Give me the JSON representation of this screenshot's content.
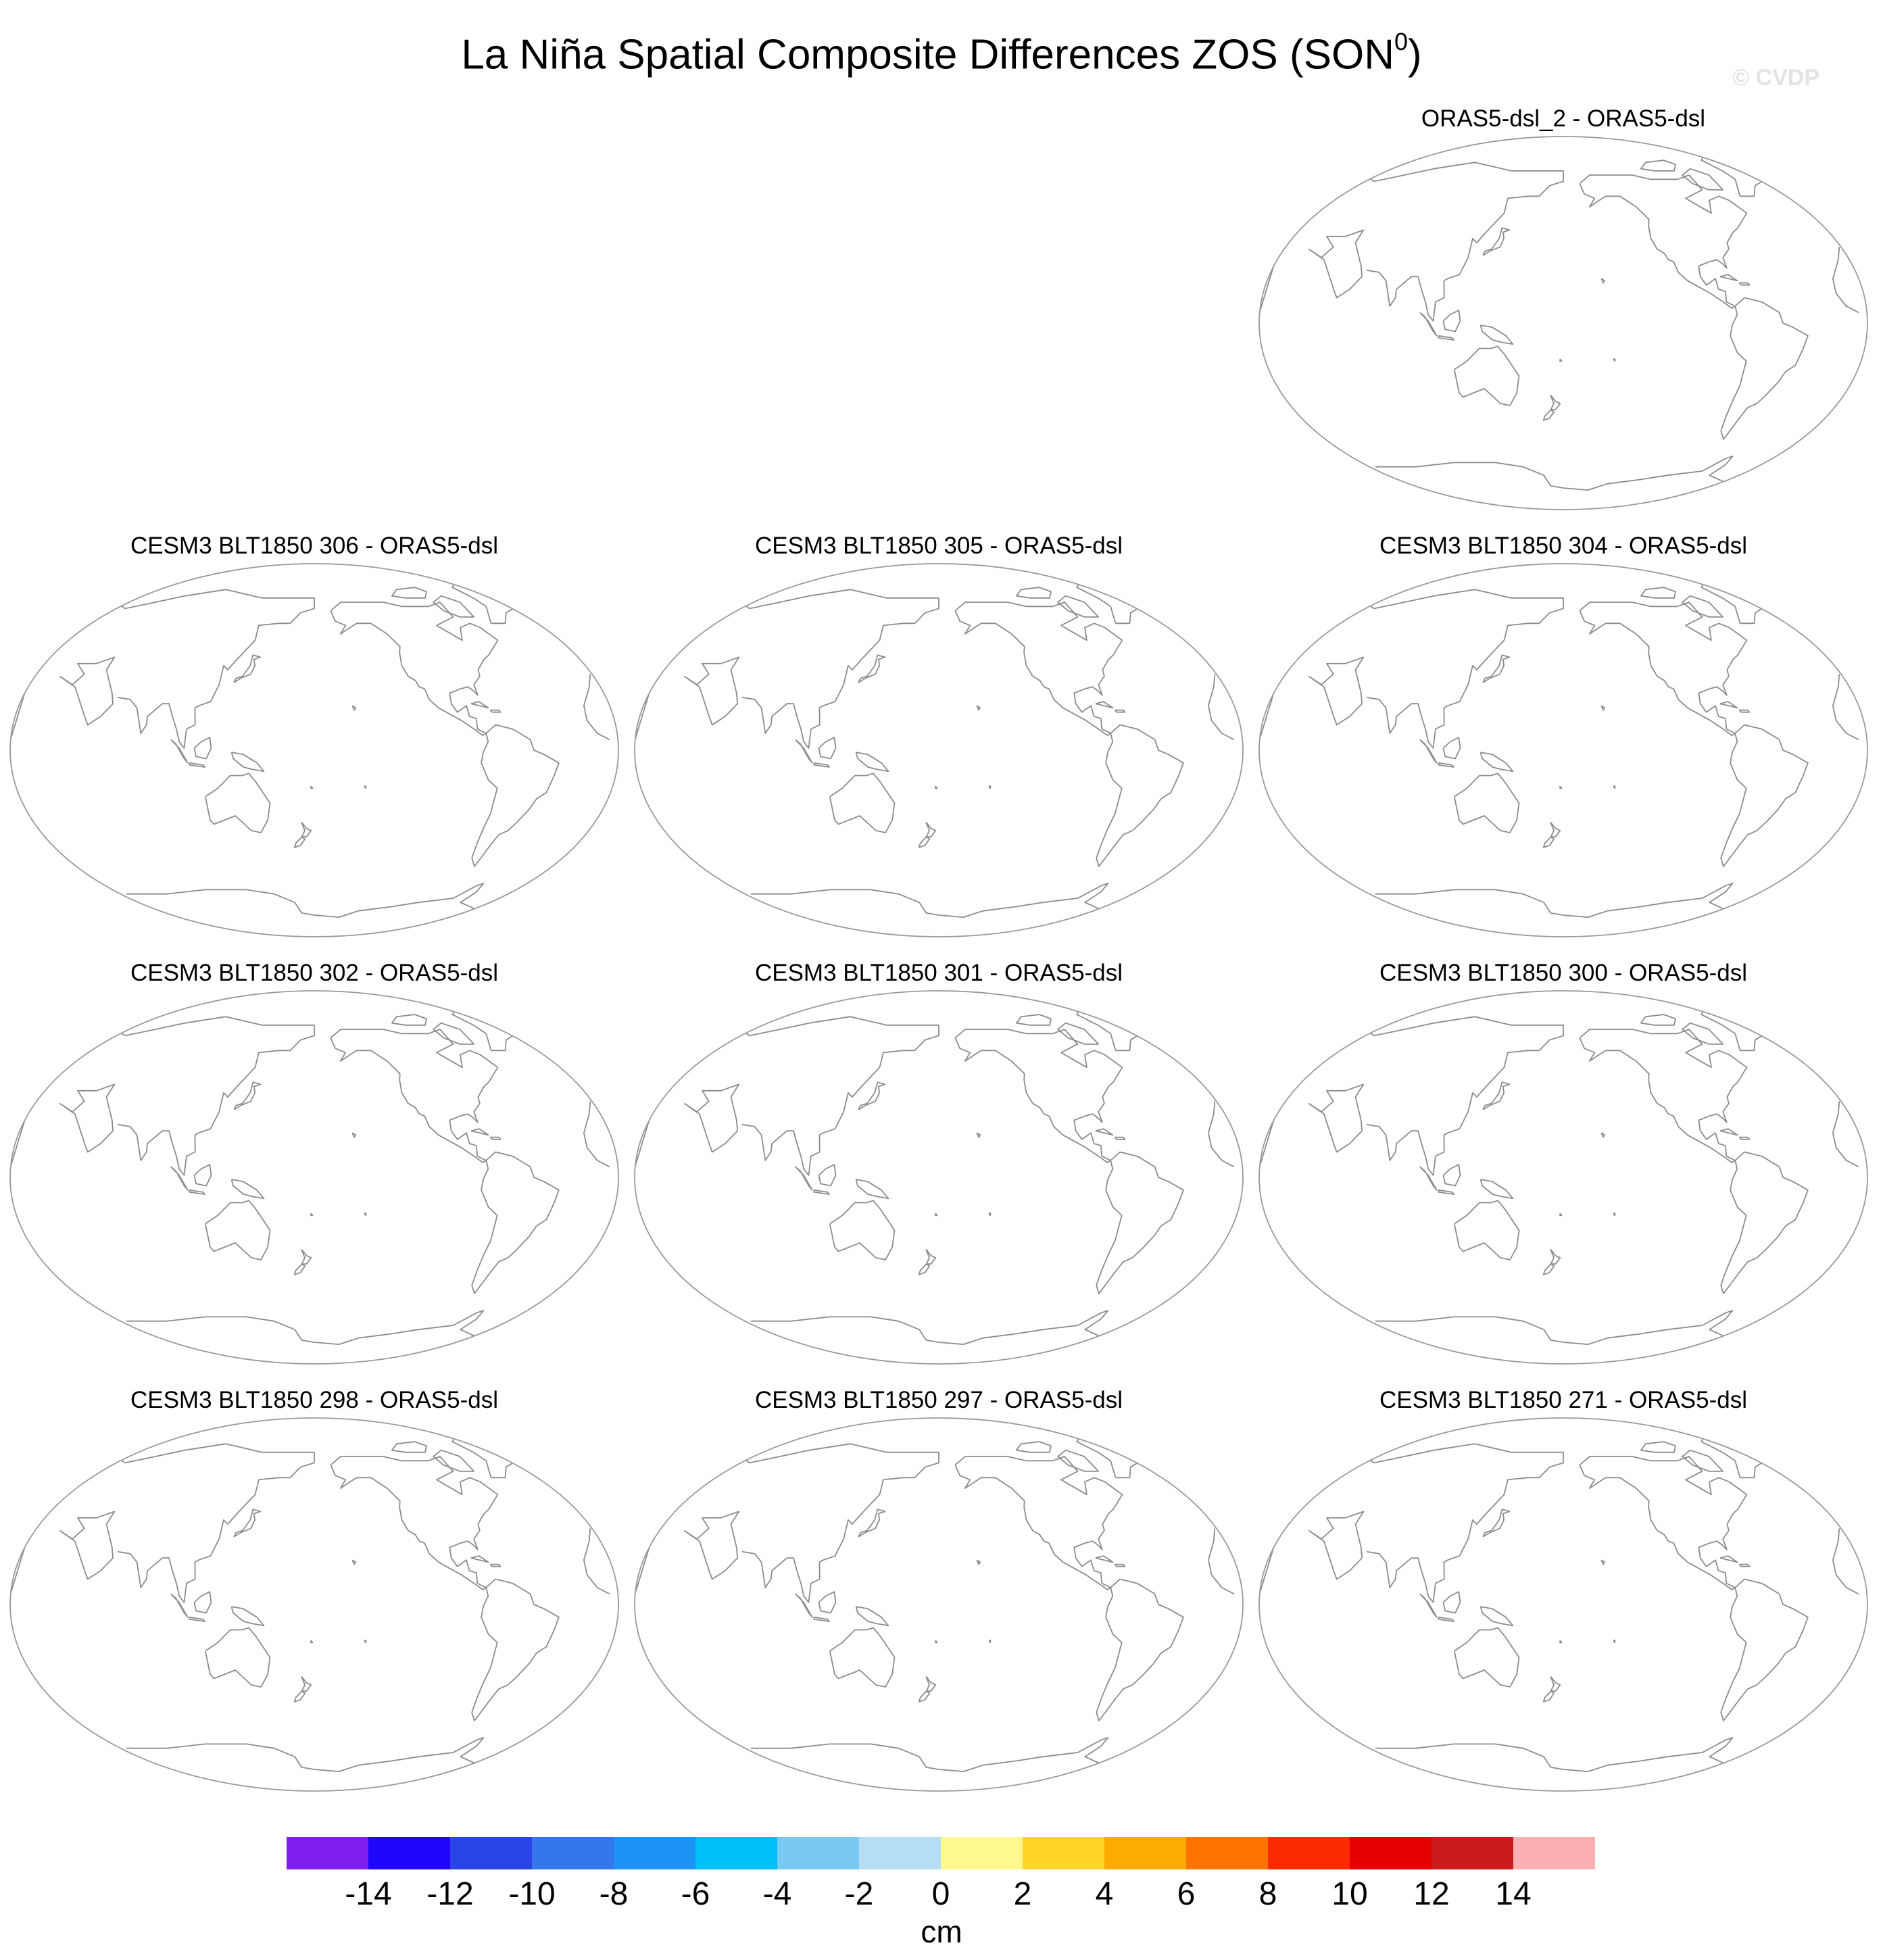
{
  "figure": {
    "title_main": "La Niña Spatial Composite Differences ZOS (SON",
    "title_superscript": "0",
    "title_close": ")",
    "watermark": "© CVDP"
  },
  "panels": [
    {
      "id": "p1",
      "title": "ORAS5-dsl_2 - ORAS5-dsl",
      "row": 0,
      "col": 2
    },
    {
      "id": "p2",
      "title": "CESM3 BLT1850 306 - ORAS5-dsl",
      "row": 1,
      "col": 0
    },
    {
      "id": "p3",
      "title": "CESM3 BLT1850 305 - ORAS5-dsl",
      "row": 1,
      "col": 1
    },
    {
      "id": "p4",
      "title": "CESM3 BLT1850 304 - ORAS5-dsl",
      "row": 1,
      "col": 2
    },
    {
      "id": "p5",
      "title": "CESM3 BLT1850 302 - ORAS5-dsl",
      "row": 2,
      "col": 0
    },
    {
      "id": "p6",
      "title": "CESM3 BLT1850 301 - ORAS5-dsl",
      "row": 2,
      "col": 1
    },
    {
      "id": "p7",
      "title": "CESM3 BLT1850 300 - ORAS5-dsl",
      "row": 2,
      "col": 2
    },
    {
      "id": "p8",
      "title": "CESM3 BLT1850 298 - ORAS5-dsl",
      "row": 3,
      "col": 0
    },
    {
      "id": "p9",
      "title": "CESM3 BLT1850 297 - ORAS5-dsl",
      "row": 3,
      "col": 1
    },
    {
      "id": "p10",
      "title": "CESM3 BLT1850 271 - ORAS5-dsl",
      "row": 3,
      "col": 2
    }
  ],
  "colorbar": {
    "units": "cm",
    "colors": [
      "#7f1ff0",
      "#1f06fb",
      "#2a44e8",
      "#3377ea",
      "#1d92f5",
      "#00c0f9",
      "#79c9f3",
      "#b6def2",
      "#fef88e",
      "#fed525",
      "#fdab00",
      "#fd7500",
      "#fb2a00",
      "#e40001",
      "#cc1b1d",
      "#fdb0b3"
    ],
    "labels": [
      "-14",
      "-12",
      "-10",
      "-8",
      "-6",
      "-4",
      "-2",
      "0",
      "2",
      "4",
      "6",
      "8",
      "10",
      "12",
      "14"
    ]
  }
}
